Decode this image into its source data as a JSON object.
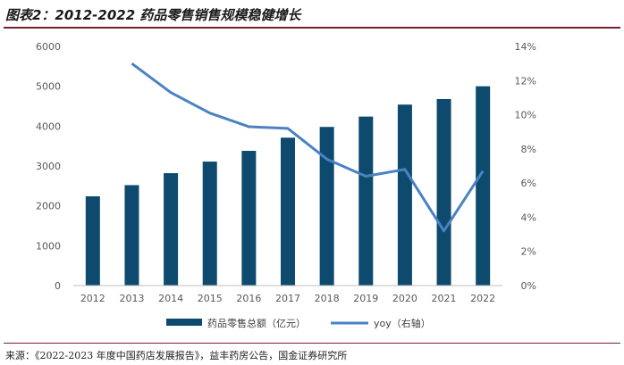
{
  "figure": {
    "title": "图表2：2012-2022 药品零售销售规模稳健增长",
    "source": "来源：《2022-2023 年度中国药店发展报告》，益丰药房公告，国金证券研究所"
  },
  "colors": {
    "bar": "#0d4a6e",
    "line": "#4a82c3",
    "axis": "#bfbfbf",
    "tick_text": "#595959"
  },
  "chart_data": {
    "type": "bar",
    "title": "2012-2022 药品零售销售规模稳健增长",
    "categories": [
      "2012",
      "2013",
      "2014",
      "2015",
      "2016",
      "2017",
      "2018",
      "2019",
      "2020",
      "2021",
      "2022"
    ],
    "series": [
      {
        "name": "药品零售总额（亿元）",
        "type": "bar",
        "axis": "left",
        "values": [
          2240,
          2520,
          2820,
          3110,
          3380,
          3710,
          3980,
          4240,
          4540,
          4680,
          5000
        ]
      },
      {
        "name": "yoy（右轴）",
        "type": "line",
        "axis": "right",
        "values": [
          null,
          13.0,
          11.3,
          10.1,
          9.3,
          9.2,
          7.4,
          6.4,
          6.8,
          3.2,
          6.7
        ]
      }
    ],
    "left_axis": {
      "ylim": [
        0,
        6000
      ],
      "ticks": [
        "0",
        "1000",
        "2000",
        "3000",
        "4000",
        "5000",
        "6000"
      ]
    },
    "right_axis": {
      "ylim": [
        0,
        14
      ],
      "ticks": [
        "0%",
        "2%",
        "4%",
        "6%",
        "8%",
        "10%",
        "12%",
        "14%"
      ]
    },
    "legend": {
      "placement": "bottom",
      "items": [
        "药品零售总额（亿元）",
        "yoy（右轴）"
      ]
    }
  }
}
